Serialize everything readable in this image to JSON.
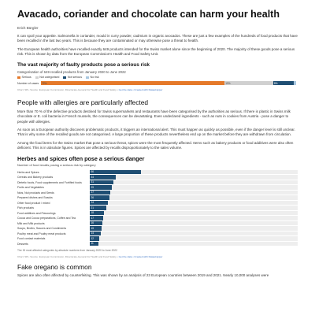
{
  "article": {
    "title": "Avacado, coriander and chocolate can harm your health",
    "author": "Erich Bürgler",
    "intro": "It can spoil your appetite. Salmonella in coriander, mould in curry powder, cadmium in organic avocados. These are just a few examples of the hundreds of food products that have been recalled in the last two years. This is because they are contaminated or may otherwise pose a threat to health.",
    "p2": "The European health authorities have recalled exactly 649 products intended for the Swiss market alone since the beginning of 2020. The majority of these goods pose a serious risk. This is shown by data from the European Commission's Health and Food Safety Unit."
  },
  "chart1_meta": {
    "title": "The vast majority of faulty products pose a serious risk",
    "subtitle": "Categorisation of 649 recalled products from January 2020 to June 2022",
    "row_label": "Number of cases",
    "credit": "Chart: SB • Source: European Commission, Directorate-General for Health and Food Safety",
    "credit_links": "Get the data • Created with Datawrapper"
  },
  "section2": {
    "heading": "People with allergies are particularly affected",
    "p1": "More than 70 % of the defective products destined for Swiss supermarkets and restaurants have been categorised by the authorities as serious. If there is plastic in Swiss milk chocolate or E. coli bacteria in French mussels, the consequences can be devastating. Even undeclared ingredients - such as nuts in cookies from Austria - pose a danger to people with allergies.",
    "p2": "As soon as a European authority discovers problematic products, it triggers an international alert. This must happen as quickly as possible, even if the danger level is still unclear. That is why some of the recalled goods are not categorised. A large proportion of these products nevertheless end up on the market before they are withdrawn from circulation.",
    "p3": "Among the food items for the Swiss market that pose a serious threat, spices were the most frequently affected. Items such as bakery products or food additives were also often deficient. This is in absolute figures. Spices are affected by recalls disproportionately to the sales volume."
  },
  "chart2_meta": {
    "title": "Herbes and spices often pose a serious danger",
    "subtitle": "Number of food recalls posing a serious risk by category",
    "note": "The 15 most affected categories by absolute numbers from January 2020 to June 2022",
    "credit": "Chart: SB • Source: European Commission, Directorate-General for Health and Food Safety",
    "credit_links": "Get the data • Created with Datawrapper"
  },
  "section3": {
    "heading": "Fake oregano is common",
    "p1": "Spices are also often affected by counterfeiting. This was shown by an analysis of 23 European countries between 2019 and 2021. Nearly 10,000 analyses were"
  },
  "colors": {
    "serious": "#e5792a",
    "not_categorised": "#d0d0d0",
    "not_serious": "#1f4e73",
    "no_risk": "#a9c8e0",
    "bar": "#1f4e73"
  },
  "chart_data": [
    {
      "type": "bar",
      "stacked": true,
      "orientation": "horizontal",
      "title": "The vast majority of faulty products pose a serious risk",
      "subtitle": "Categorisation of 649 recalled products from January 2020 to June 2022",
      "categories": [
        "Number of cases"
      ],
      "series": [
        {
          "name": "Serious",
          "values": [
            72
          ],
          "label": "72%"
        },
        {
          "name": "Not categorised",
          "values": [
            19
          ],
          "label": "19%"
        },
        {
          "name": "Not serious",
          "values": [
            8
          ],
          "label": "8%"
        },
        {
          "name": "No risk",
          "values": [
            1
          ],
          "label": ""
        }
      ],
      "xlim": [
        0,
        100
      ],
      "legend": "top-left"
    },
    {
      "type": "bar",
      "orientation": "horizontal",
      "title": "Herbes and spices often pose a serious danger",
      "subtitle": "Number of food recalls posing a serious risk by category",
      "categories": [
        "Herbs and Spices",
        "Cereals and Bakery products",
        "Dietetic foods, Food supplements and Fortified foods",
        "Fruits and Vegetables",
        "Nuts, Nut products and Seeds",
        "Prepared dishes and Snacks",
        "Other food product / mixed",
        "Fish products",
        "Food additives and Flavourings",
        "Cocoa and Cocoa preparations, Coffee and Tea",
        "Milk and Milk products",
        "Soups, Broths, Sauces and Condiments",
        "Poultry meat and Poultry meat products",
        "Food contact materials",
        "Desserts"
      ],
      "values": [
        66,
        34,
        31,
        29,
        27,
        26,
        24,
        21,
        18,
        17,
        16,
        15,
        14,
        12,
        11
      ],
      "value_labels": [
        "66",
        "34",
        "31",
        "29",
        "27",
        "26",
        "24",
        "21",
        "18",
        "17",
        "16",
        "15",
        "14",
        "12",
        "11"
      ],
      "xlim": [
        0,
        270
      ]
    }
  ]
}
